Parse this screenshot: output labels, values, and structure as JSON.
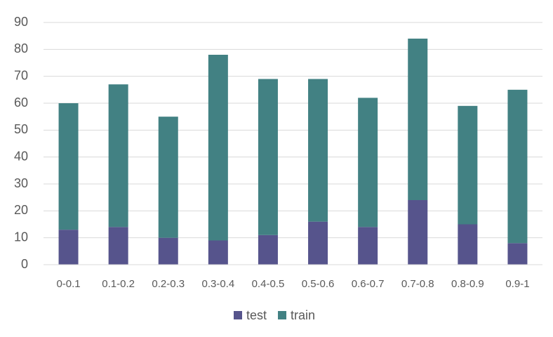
{
  "chart_data": {
    "type": "stacked_bar",
    "categories": [
      "0-0.1",
      "0.1-0.2",
      "0.2-0.3",
      "0.3-0.4",
      "0.4-0.5",
      "0.5-0.6",
      "0.6-0.7",
      "0.7-0.8",
      "0.8-0.9",
      "0.9-1"
    ],
    "series": [
      {
        "name": "test",
        "color": "#56548c",
        "values": [
          13,
          14,
          10,
          9,
          11,
          16,
          14,
          24,
          15,
          8
        ]
      },
      {
        "name": "train",
        "color": "#428183",
        "values": [
          47,
          53,
          45,
          69,
          58,
          53,
          48,
          60,
          44,
          57
        ]
      }
    ],
    "ylim": [
      0,
      90
    ],
    "yticks": [
      0,
      10,
      20,
      30,
      40,
      50,
      60,
      70,
      80,
      90
    ],
    "grid": true,
    "legend": "bottom"
  }
}
